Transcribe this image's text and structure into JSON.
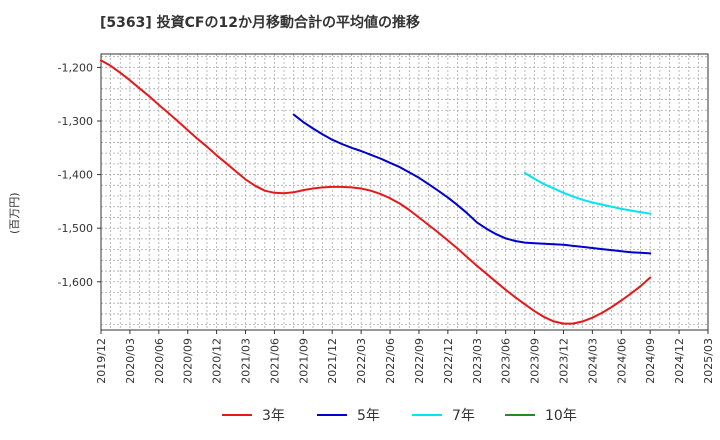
{
  "title": "[5363]  投資CFの12か月移動合計の平均値の推移",
  "y_unit_label": "(百万円)",
  "chart_data": {
    "type": "line",
    "title": "[5363]  投資CFの12か月移動合計の平均値の推移",
    "ylabel": "(百万円)",
    "xlabel": "",
    "x_ticks": [
      "2019/12",
      "2020/03",
      "2020/06",
      "2020/09",
      "2020/12",
      "2021/03",
      "2021/06",
      "2021/09",
      "2021/12",
      "2022/03",
      "2022/06",
      "2022/09",
      "2022/12",
      "2023/03",
      "2023/06",
      "2023/09",
      "2023/12",
      "2024/03",
      "2024/06",
      "2024/09",
      "2024/12",
      "2025/03"
    ],
    "y_ticks": [
      -1200,
      -1300,
      -1400,
      -1500,
      -1600
    ],
    "y_tick_labels": [
      "-1,200",
      "-1,300",
      "-1,400",
      "-1,500",
      "-1,600"
    ],
    "ylim": [
      -1690,
      -1175
    ],
    "grid": true,
    "legend_position": "bottom",
    "series": [
      {
        "name": "3年",
        "color": "#e31a1c",
        "x": [
          "2019/12",
          "2020/01",
          "2020/02",
          "2020/03",
          "2020/04",
          "2020/05",
          "2020/06",
          "2020/07",
          "2020/08",
          "2020/09",
          "2020/10",
          "2020/11",
          "2020/12",
          "2021/01",
          "2021/02",
          "2021/03",
          "2021/04",
          "2021/05",
          "2021/06",
          "2021/07",
          "2021/08",
          "2021/09",
          "2021/10",
          "2021/11",
          "2021/12",
          "2022/01",
          "2022/02",
          "2022/03",
          "2022/04",
          "2022/05",
          "2022/06",
          "2022/07",
          "2022/08",
          "2022/09",
          "2022/10",
          "2022/11",
          "2022/12",
          "2023/01",
          "2023/02",
          "2023/03",
          "2023/04",
          "2023/05",
          "2023/06",
          "2023/07",
          "2023/08",
          "2023/09",
          "2023/10",
          "2023/11",
          "2023/12",
          "2024/01",
          "2024/02",
          "2024/03",
          "2024/04",
          "2024/05",
          "2024/06",
          "2024/07",
          "2024/08",
          "2024/09"
        ],
        "values": [
          -1187,
          -1197,
          -1210,
          -1224,
          -1239,
          -1254,
          -1270,
          -1285,
          -1301,
          -1317,
          -1333,
          -1348,
          -1364,
          -1379,
          -1394,
          -1409,
          -1421,
          -1430,
          -1434,
          -1435,
          -1433,
          -1429,
          -1426,
          -1424,
          -1423,
          -1423,
          -1424,
          -1426,
          -1430,
          -1436,
          -1444,
          -1454,
          -1466,
          -1480,
          -1494,
          -1508,
          -1523,
          -1538,
          -1554,
          -1570,
          -1585,
          -1600,
          -1615,
          -1629,
          -1642,
          -1655,
          -1666,
          -1674,
          -1678,
          -1678,
          -1674,
          -1667,
          -1658,
          -1647,
          -1635,
          -1622,
          -1608,
          -1592
        ]
      },
      {
        "name": "5年",
        "color": "#0000cc",
        "x": [
          "2021/08",
          "2021/09",
          "2021/10",
          "2021/11",
          "2021/12",
          "2022/01",
          "2022/02",
          "2022/03",
          "2022/04",
          "2022/05",
          "2022/06",
          "2022/07",
          "2022/08",
          "2022/09",
          "2022/10",
          "2022/11",
          "2022/12",
          "2023/01",
          "2023/02",
          "2023/03",
          "2023/04",
          "2023/05",
          "2023/06",
          "2023/07",
          "2023/08",
          "2023/09",
          "2023/10",
          "2023/11",
          "2023/12",
          "2024/01",
          "2024/02",
          "2024/03",
          "2024/04",
          "2024/05",
          "2024/06",
          "2024/07",
          "2024/08",
          "2024/09"
        ],
        "values": [
          -1288,
          -1302,
          -1314,
          -1325,
          -1335,
          -1343,
          -1350,
          -1356,
          -1363,
          -1370,
          -1378,
          -1386,
          -1396,
          -1406,
          -1418,
          -1430,
          -1443,
          -1457,
          -1472,
          -1489,
          -1501,
          -1511,
          -1519,
          -1524,
          -1527,
          -1528,
          -1529,
          -1530,
          -1531,
          -1533,
          -1535,
          -1537,
          -1539,
          -1541,
          -1543,
          -1545,
          -1546,
          -1547
        ]
      },
      {
        "name": "7年",
        "color": "#00e5ee",
        "x": [
          "2023/08",
          "2023/09",
          "2023/10",
          "2023/11",
          "2023/12",
          "2024/01",
          "2024/02",
          "2024/03",
          "2024/04",
          "2024/05",
          "2024/06",
          "2024/07",
          "2024/08",
          "2024/09"
        ],
        "values": [
          -1397,
          -1408,
          -1418,
          -1426,
          -1434,
          -1441,
          -1447,
          -1452,
          -1456,
          -1460,
          -1464,
          -1467,
          -1470,
          -1473
        ]
      },
      {
        "name": "10年",
        "color": "#228b22",
        "x": [],
        "values": []
      }
    ]
  }
}
